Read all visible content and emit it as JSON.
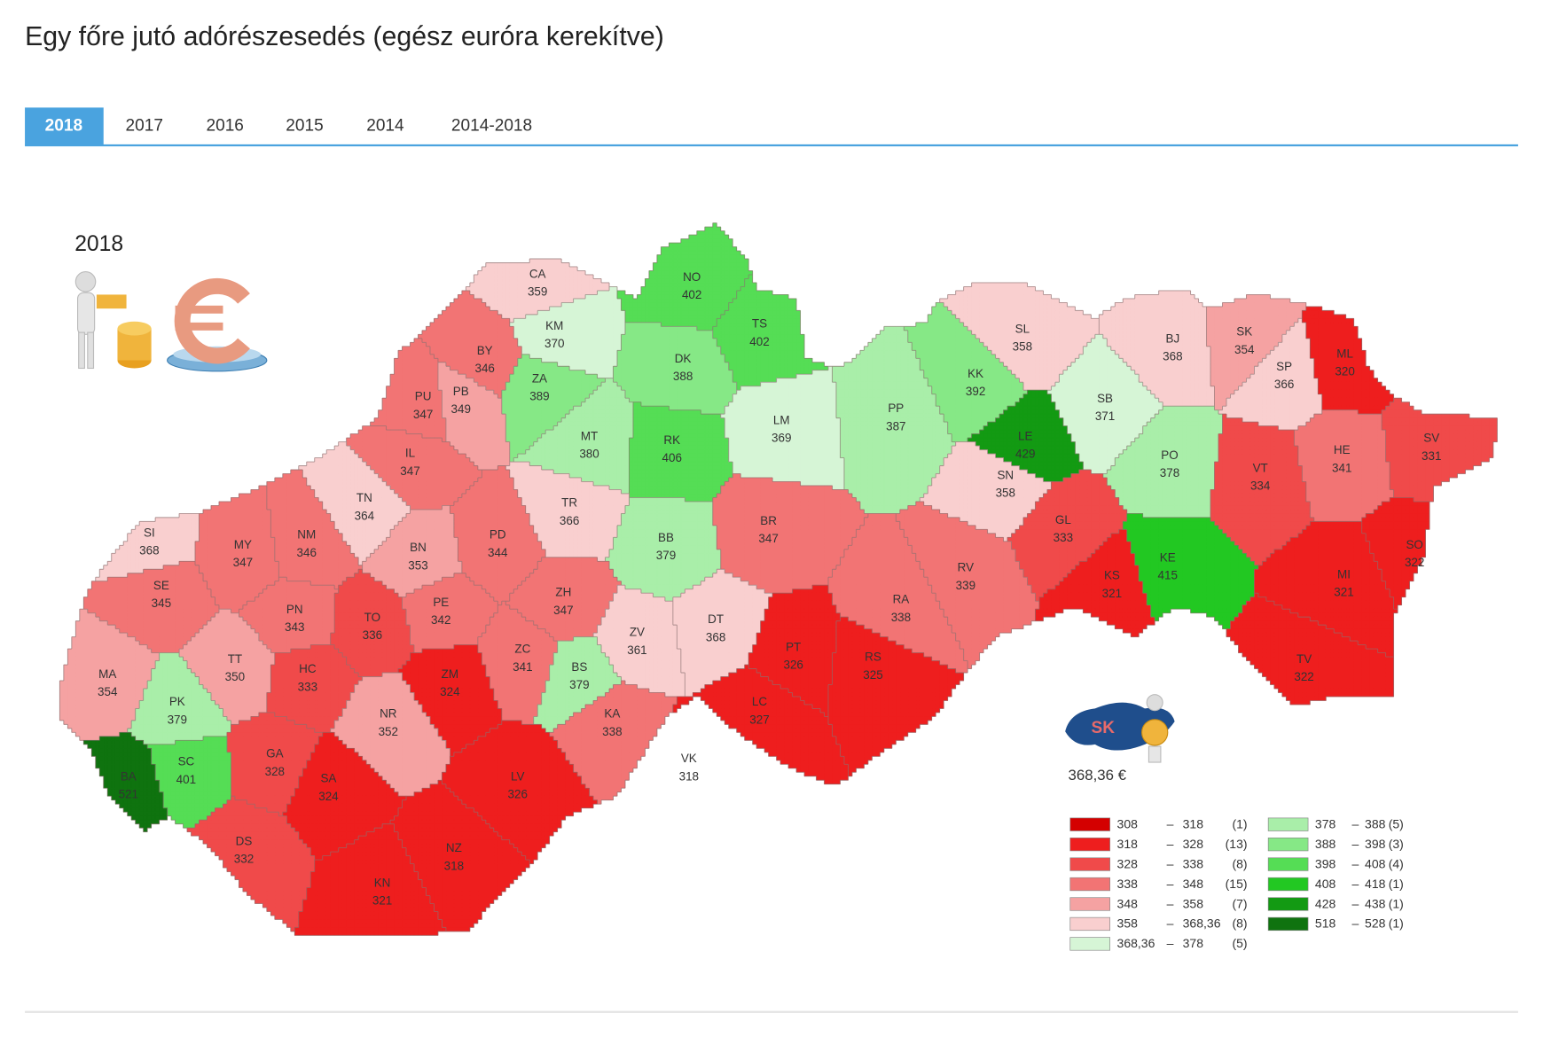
{
  "title": "Egy főre jutó adórészesedés (egész euróra kerekítve)",
  "tabs": [
    "2018",
    "2017",
    "2016",
    "2015",
    "2014",
    "2014-2018"
  ],
  "active_tab": 0,
  "chart_data": {
    "type": "choropleth",
    "title": "2018",
    "country": "SK",
    "average": {
      "value": 368.36,
      "label": "368,36 €"
    },
    "legend_separator": "–",
    "legend": [
      {
        "from": 308,
        "to": 318,
        "count": {
          "value": 1,
          "label": "(1)"
        },
        "color": "#d40000"
      },
      {
        "from": 318,
        "to": 328,
        "count": {
          "value": 13,
          "label": "(13)"
        },
        "color": "#ee1e1e"
      },
      {
        "from": 328,
        "to": 338,
        "count": {
          "value": 8,
          "label": "(8)"
        },
        "color": "#f04a4a"
      },
      {
        "from": 338,
        "to": 348,
        "count": {
          "value": 15,
          "label": "(15)"
        },
        "color": "#f27474"
      },
      {
        "from": 348,
        "to": 358,
        "count": {
          "value": 7,
          "label": "(7)"
        },
        "color": "#f5a2a2"
      },
      {
        "from": 358,
        "to": {
          "value": 368.36,
          "label": "368,36"
        },
        "count": {
          "value": 8,
          "label": "(8)"
        },
        "color": "#f9cfcf"
      },
      {
        "from": {
          "value": 368.36,
          "label": "368,36"
        },
        "to": 378,
        "count": {
          "value": 5,
          "label": "(5)"
        },
        "color": "#d6f5d6"
      },
      {
        "from": 378,
        "to": 388,
        "count": {
          "value": 5,
          "label": "(5)"
        },
        "color": "#a9eea9"
      },
      {
        "from": 388,
        "to": 398,
        "count": {
          "value": 3,
          "label": "(3)"
        },
        "color": "#86e886"
      },
      {
        "from": 398,
        "to": 408,
        "count": {
          "value": 4,
          "label": "(4)"
        },
        "color": "#55dd55"
      },
      {
        "from": 408,
        "to": 418,
        "count": {
          "value": 1,
          "label": "(1)"
        },
        "color": "#22c822"
      },
      {
        "from": 428,
        "to": 438,
        "count": {
          "value": 1,
          "label": "(1)"
        },
        "color": "#139a13"
      },
      {
        "from": 518,
        "to": 528,
        "count": {
          "value": 1,
          "label": "(1)"
        },
        "color": "#0f730f"
      }
    ],
    "districts": [
      {
        "code": "CA",
        "value": 359
      },
      {
        "code": "KM",
        "value": 370
      },
      {
        "code": "NO",
        "value": 402
      },
      {
        "code": "TS",
        "value": 402
      },
      {
        "code": "BY",
        "value": 346
      },
      {
        "code": "ZA",
        "value": 389
      },
      {
        "code": "DK",
        "value": 388
      },
      {
        "code": "PU",
        "value": 347
      },
      {
        "code": "PB",
        "value": 349
      },
      {
        "code": "MT",
        "value": 380
      },
      {
        "code": "RK",
        "value": 406
      },
      {
        "code": "LM",
        "value": 369
      },
      {
        "code": "PP",
        "value": 387
      },
      {
        "code": "KK",
        "value": 392
      },
      {
        "code": "SL",
        "value": 358
      },
      {
        "code": "BJ",
        "value": 368
      },
      {
        "code": "SK",
        "value": 354
      },
      {
        "code": "SP",
        "value": 366
      },
      {
        "code": "ML",
        "value": 320
      },
      {
        "code": "SB",
        "value": 371
      },
      {
        "code": "LE",
        "value": 429
      },
      {
        "code": "PO",
        "value": 378
      },
      {
        "code": "HE",
        "value": 341
      },
      {
        "code": "SV",
        "value": 331
      },
      {
        "code": "VT",
        "value": 334
      },
      {
        "code": "IL",
        "value": 347
      },
      {
        "code": "TN",
        "value": 364
      },
      {
        "code": "TR",
        "value": 366
      },
      {
        "code": "BB",
        "value": 379
      },
      {
        "code": "BR",
        "value": 347
      },
      {
        "code": "SN",
        "value": 358
      },
      {
        "code": "GL",
        "value": 333
      },
      {
        "code": "SI",
        "value": 368
      },
      {
        "code": "MY",
        "value": 347
      },
      {
        "code": "NM",
        "value": 346
      },
      {
        "code": "BN",
        "value": 353
      },
      {
        "code": "PD",
        "value": 344
      },
      {
        "code": "RV",
        "value": 339
      },
      {
        "code": "KS",
        "value": 321
      },
      {
        "code": "KE",
        "value": 415
      },
      {
        "code": "SO",
        "value": 322
      },
      {
        "code": "MI",
        "value": 321
      },
      {
        "code": "SE",
        "value": 345
      },
      {
        "code": "PN",
        "value": 343
      },
      {
        "code": "TO",
        "value": 336
      },
      {
        "code": "PE",
        "value": 342
      },
      {
        "code": "ZH",
        "value": 347
      },
      {
        "code": "ZV",
        "value": 361
      },
      {
        "code": "DT",
        "value": 368
      },
      {
        "code": "RA",
        "value": 338
      },
      {
        "code": "PT",
        "value": 326
      },
      {
        "code": "RS",
        "value": 325
      },
      {
        "code": "MA",
        "value": 354
      },
      {
        "code": "TT",
        "value": 350
      },
      {
        "code": "HC",
        "value": 333
      },
      {
        "code": "ZC",
        "value": 341
      },
      {
        "code": "ZM",
        "value": 324
      },
      {
        "code": "BS",
        "value": 379
      },
      {
        "code": "TV",
        "value": 322
      },
      {
        "code": "PK",
        "value": 379
      },
      {
        "code": "NR",
        "value": 352
      },
      {
        "code": "KA",
        "value": 338
      },
      {
        "code": "LC",
        "value": 327
      },
      {
        "code": "GA",
        "value": 328
      },
      {
        "code": "SC",
        "value": 401
      },
      {
        "code": "BA",
        "value": 521
      },
      {
        "code": "SA",
        "value": 324
      },
      {
        "code": "VK",
        "value": 318
      },
      {
        "code": "LV",
        "value": 326
      },
      {
        "code": "DS",
        "value": 332
      },
      {
        "code": "NZ",
        "value": 318
      },
      {
        "code": "KN",
        "value": 321
      }
    ]
  }
}
